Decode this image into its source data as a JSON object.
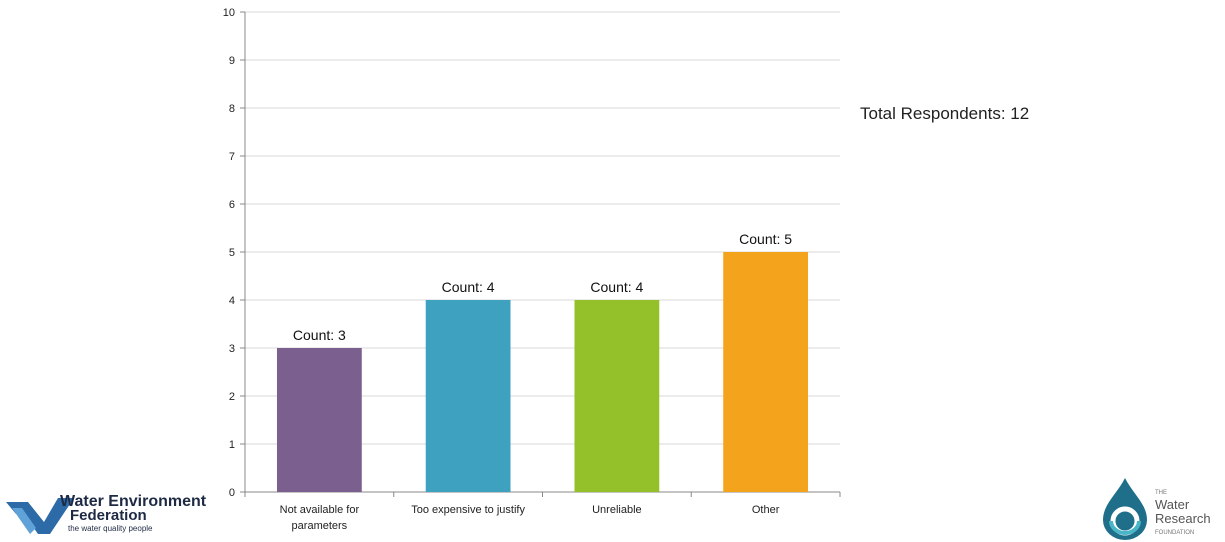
{
  "chart_data": {
    "type": "bar",
    "categories": [
      "Not available for parameters",
      "Too expensive to justify",
      "Unreliable",
      "Other"
    ],
    "category_lines": [
      [
        "Not available for",
        "parameters"
      ],
      [
        "Too expensive to justify"
      ],
      [
        "Unreliable"
      ],
      [
        "Other"
      ]
    ],
    "values": [
      3,
      4,
      4,
      5
    ],
    "data_labels": [
      "Count: 3",
      "Count: 4",
      "Count: 4",
      "Count: 5"
    ],
    "colors": [
      "#7b5f8f",
      "#3fa1c0",
      "#94c12a",
      "#f3a31c"
    ],
    "ylim": [
      0,
      10
    ],
    "yticks": [
      0,
      1,
      2,
      3,
      4,
      5,
      6,
      7,
      8,
      9,
      10
    ],
    "grid": true,
    "title": "",
    "xlabel": "",
    "ylabel": ""
  },
  "annotation": {
    "total_respondents": "Total Respondents: 12"
  },
  "logos": {
    "wef": {
      "line1": "Water Environment",
      "line2": "Federation",
      "tagline": "the water quality people"
    },
    "wrf": {
      "the": "THE",
      "line1": "Water",
      "line2": "Research",
      "line3": "FOUNDATION"
    }
  }
}
